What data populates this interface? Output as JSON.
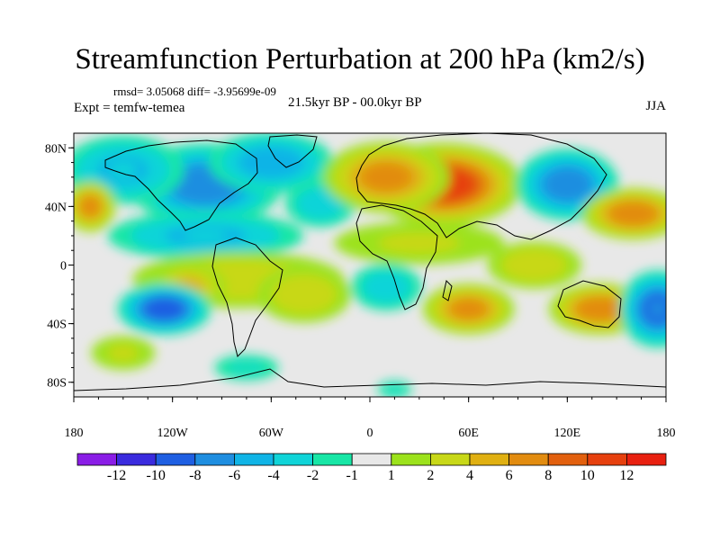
{
  "title": "Streamfunction Perturbation at 200 hPa (km2/s)",
  "stats_text": "rmsd= 3.05068 diff= -3.95699e-09",
  "experiment": "Expt = temfw-temea",
  "period": "21.5kyr BP - 00.0kyr BP",
  "season": "JJA",
  "chart_data": {
    "type": "heatmap",
    "map_projection": "cylindrical-equidistant",
    "title": "Streamfunction Perturbation at 200 hPa (km2/s)",
    "units": "km2/s",
    "xlim": [
      -180,
      180
    ],
    "ylim": [
      -90,
      90
    ],
    "x_ticks": [
      {
        "value": -180,
        "label": "180"
      },
      {
        "value": -120,
        "label": "120W"
      },
      {
        "value": -60,
        "label": "60W"
      },
      {
        "value": 0,
        "label": "0"
      },
      {
        "value": 60,
        "label": "60E"
      },
      {
        "value": 120,
        "label": "120E"
      },
      {
        "value": 180,
        "label": "180"
      }
    ],
    "y_ticks": [
      {
        "value": 80,
        "label": "80N"
      },
      {
        "value": 40,
        "label": "40N"
      },
      {
        "value": 0,
        "label": "0"
      },
      {
        "value": -40,
        "label": "40S"
      },
      {
        "value": -80,
        "label": "80S"
      }
    ],
    "background_value_range": [
      -1,
      1
    ],
    "features": [
      {
        "lon": -100,
        "lat": 55,
        "value": -7,
        "spread_lon": 30,
        "spread_lat": 16
      },
      {
        "lon": -60,
        "lat": 70,
        "value": -5,
        "spread_lon": 25,
        "spread_lat": 12
      },
      {
        "lon": -150,
        "lat": 65,
        "value": -4,
        "spread_lon": 25,
        "spread_lat": 14
      },
      {
        "lon": -30,
        "lat": 42,
        "value": -3,
        "spread_lon": 15,
        "spread_lat": 10
      },
      {
        "lon": -170,
        "lat": 40,
        "value": 6,
        "spread_lon": 10,
        "spread_lat": 10
      },
      {
        "lon": 45,
        "lat": 55,
        "value": 10,
        "spread_lon": 30,
        "spread_lat": 16
      },
      {
        "lon": 10,
        "lat": 60,
        "value": 6,
        "spread_lon": 25,
        "spread_lat": 14
      },
      {
        "lon": 120,
        "lat": 55,
        "value": -7,
        "spread_lon": 20,
        "spread_lat": 14
      },
      {
        "lon": 160,
        "lat": 35,
        "value": 7,
        "spread_lon": 20,
        "spread_lat": 10
      },
      {
        "lon": -100,
        "lat": 20,
        "value": -4,
        "spread_lon": 40,
        "spread_lat": 10
      },
      {
        "lon": 30,
        "lat": 15,
        "value": 2,
        "spread_lon": 40,
        "spread_lat": 10
      },
      {
        "lon": -80,
        "lat": -10,
        "value": 3,
        "spread_lon": 45,
        "spread_lat": 12
      },
      {
        "lon": -110,
        "lat": -15,
        "value": 4,
        "spread_lon": 15,
        "spread_lat": 10
      },
      {
        "lon": -125,
        "lat": -30,
        "value": -9,
        "spread_lon": 18,
        "spread_lat": 10
      },
      {
        "lon": -40,
        "lat": -20,
        "value": 3,
        "spread_lon": 20,
        "spread_lat": 12
      },
      {
        "lon": 10,
        "lat": -15,
        "value": -3,
        "spread_lon": 15,
        "spread_lat": 10
      },
      {
        "lon": 60,
        "lat": -30,
        "value": 6,
        "spread_lon": 18,
        "spread_lat": 10
      },
      {
        "lon": 140,
        "lat": -30,
        "value": 7,
        "spread_lon": 20,
        "spread_lat": 10
      },
      {
        "lon": 175,
        "lat": -30,
        "value": -8,
        "spread_lon": 15,
        "spread_lat": 15
      },
      {
        "lon": -150,
        "lat": -60,
        "value": 2,
        "spread_lon": 15,
        "spread_lat": 8
      },
      {
        "lon": -75,
        "lat": -70,
        "value": -2,
        "spread_lon": 15,
        "spread_lat": 6
      },
      {
        "lon": 15,
        "lat": -85,
        "value": -2,
        "spread_lon": 8,
        "spread_lat": 4
      },
      {
        "lon": 100,
        "lat": 0,
        "value": 3,
        "spread_lon": 20,
        "spread_lat": 10
      }
    ],
    "colorbar": {
      "levels": [
        -12,
        -10,
        -8,
        -6,
        -4,
        -2,
        -1,
        1,
        2,
        4,
        6,
        8,
        10,
        12
      ],
      "labels": [
        "-12",
        "-10",
        "-8",
        "-6",
        "-4",
        "-2",
        "-1",
        "1",
        "2",
        "4",
        "6",
        "8",
        "10",
        "12"
      ],
      "colors": [
        "#8a1de6",
        "#3a2bde",
        "#1f5fe2",
        "#1f8ee0",
        "#10b4e6",
        "#10d4d8",
        "#18e6a6",
        "#e8e8e8",
        "#9ce21c",
        "#c8d818",
        "#e0b012",
        "#e28c10",
        "#e2600e",
        "#e6400e",
        "#e82010"
      ]
    }
  }
}
